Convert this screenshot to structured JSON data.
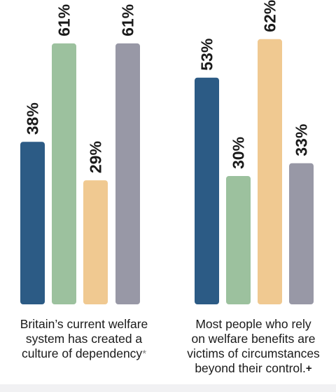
{
  "colors": {
    "blue": "#2c5b85",
    "green": "#9cc19e",
    "peach": "#f0c991",
    "grey": "#9898a6",
    "text": "#1a1a1a"
  },
  "chart_data": [
    {
      "type": "bar",
      "caption_lines": [
        "Britain’s current welfare",
        "system has created a",
        "culture of dependency"
      ],
      "caption_mark": "*",
      "series": [
        {
          "value": 38,
          "label": "38%",
          "color": "#2c5b85"
        },
        {
          "value": 61,
          "label": "61%",
          "color": "#9cc19e"
        },
        {
          "value": 29,
          "label": "29%",
          "color": "#f0c991"
        },
        {
          "value": 61,
          "label": "61%",
          "color": "#9898a6"
        }
      ],
      "ylim": [
        0,
        100
      ],
      "grid": false,
      "legend": "none"
    },
    {
      "type": "bar",
      "caption_lines": [
        "Most people who rely",
        "on welfare benefits are",
        "victims of circumstances",
        "beyond their control."
      ],
      "caption_mark": "+",
      "series": [
        {
          "value": 53,
          "label": "53%",
          "color": "#2c5b85"
        },
        {
          "value": 30,
          "label": "30%",
          "color": "#9cc19e"
        },
        {
          "value": 62,
          "label": "62%",
          "color": "#f0c991"
        },
        {
          "value": 33,
          "label": "33%",
          "color": "#9898a6"
        }
      ],
      "ylim": [
        0,
        100
      ],
      "grid": false,
      "legend": "none"
    }
  ]
}
